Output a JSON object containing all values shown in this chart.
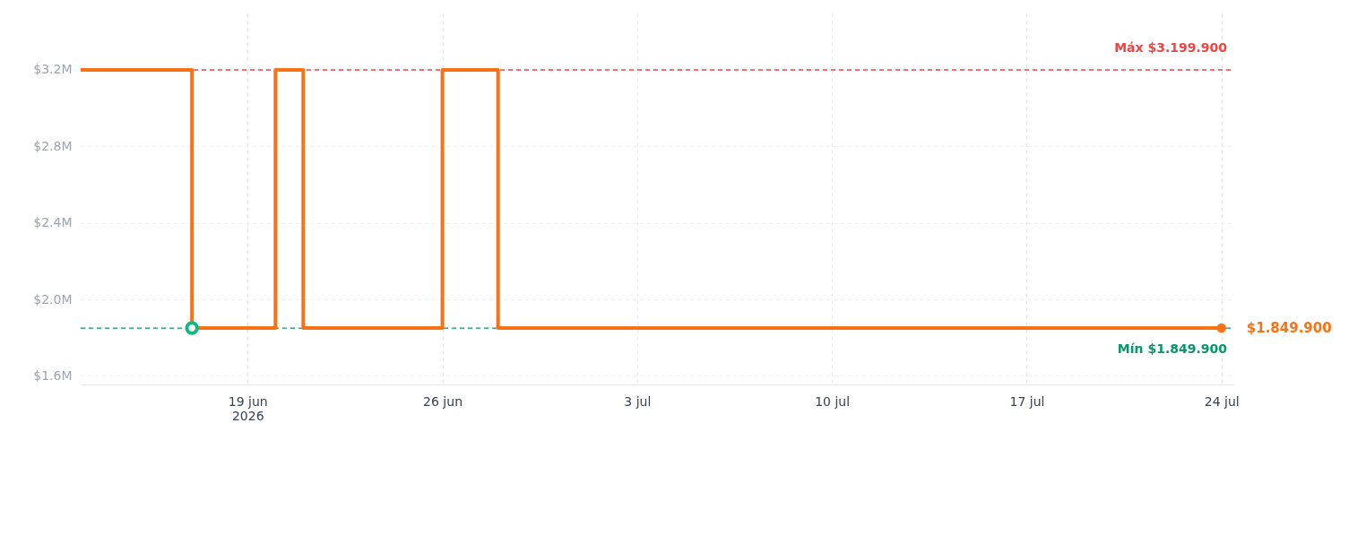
{
  "chart_data": {
    "type": "step",
    "xlim": [
      "2026-06-13",
      "2026-07-24T11:00"
    ],
    "ylim": [
      1555000,
      3495000
    ],
    "xticks": [
      {
        "value": "2026-06-19",
        "label": "19 jun\n2026"
      },
      {
        "value": "2026-06-26",
        "label": "26 jun"
      },
      {
        "value": "2026-07-03",
        "label": "3 jul"
      },
      {
        "value": "2026-07-10",
        "label": "10 jul"
      },
      {
        "value": "2026-07-17",
        "label": "17 jul"
      },
      {
        "value": "2026-07-24",
        "label": "24 jul"
      }
    ],
    "yticks": [
      {
        "value": 1600000,
        "label": "$1.6M"
      },
      {
        "value": 2000000,
        "label": "$2.0M"
      },
      {
        "value": 2400000,
        "label": "$2.4M"
      },
      {
        "value": 2800000,
        "label": "$2.8M"
      },
      {
        "value": 3200000,
        "label": "$3.2M"
      }
    ],
    "grid": true,
    "line_style": "solid",
    "series": [
      {
        "color": "#f97316",
        "x": [
          "2026-06-13",
          "2026-06-17",
          "2026-06-20",
          "2026-06-21",
          "2026-06-26",
          "2026-06-28",
          "2026-07-24"
        ],
        "values": [
          3199900,
          1849900,
          3199900,
          1849900,
          3199900,
          1849900,
          1849900
        ]
      },
      {
        "type": "scatter",
        "color": "#10b981",
        "marker": "circle",
        "x": [
          "2026-06-17"
        ],
        "values": [
          1849900
        ]
      }
    ],
    "ref_lines": [
      {
        "axis": "y",
        "value": 3199900,
        "label": "Máx $3.199.900",
        "color": "#ef4444",
        "line_style": "dashed"
      },
      {
        "axis": "y",
        "value": 1849900,
        "label": "Mín $1.849.900",
        "color": "#059669",
        "line_style": "dashed"
      }
    ],
    "annotations": [
      {
        "text": "$1.849.900",
        "x": "2026-07-24",
        "y": 1849900
      }
    ]
  }
}
